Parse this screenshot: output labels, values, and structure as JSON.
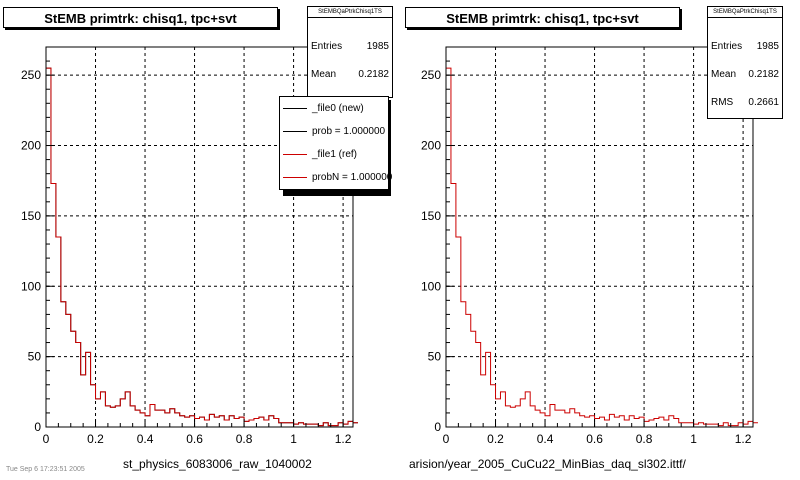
{
  "theme": {
    "frame_color": "#000000",
    "file0_color": "#000000",
    "file1_color": "#cc0000",
    "background": "#ffffff"
  },
  "chart_data": [
    {
      "type": "histogram",
      "title": "StEMB primtrk: chisq1, tpc+svt",
      "xlim": [
        0,
        1.24
      ],
      "ylim": [
        0,
        270
      ],
      "xticks": [
        0,
        0.2,
        0.4,
        0.6,
        0.8,
        1,
        1.2
      ],
      "yticks": [
        0,
        50,
        100,
        150,
        200,
        250
      ],
      "bin_width": 0.02,
      "grid": true,
      "xlabel": "st_physics_6083006_raw_1040002",
      "series": [
        {
          "name": "_file0 (new)",
          "color": "#000000",
          "values": [
            255,
            173,
            135,
            89,
            80,
            68,
            60,
            37,
            53,
            30,
            20,
            25,
            15,
            14,
            15,
            20,
            25,
            15,
            12,
            10,
            8,
            16,
            12,
            12,
            10,
            13,
            10,
            8,
            7,
            8,
            6,
            7,
            5,
            9,
            7,
            8,
            5,
            8,
            6,
            7,
            4,
            5,
            6,
            7,
            5,
            8,
            6,
            3,
            3,
            3,
            2,
            3,
            2,
            2,
            2,
            1,
            3,
            1,
            1,
            3,
            2,
            4,
            3
          ]
        },
        {
          "name": "_file1 (ref)",
          "color": "#cc0000",
          "values": [
            255,
            173,
            135,
            89,
            80,
            68,
            60,
            37,
            53,
            30,
            20,
            25,
            15,
            14,
            15,
            20,
            25,
            15,
            12,
            10,
            8,
            16,
            12,
            12,
            10,
            13,
            10,
            8,
            7,
            8,
            6,
            7,
            5,
            9,
            7,
            8,
            5,
            8,
            6,
            7,
            4,
            5,
            6,
            7,
            5,
            8,
            6,
            3,
            3,
            3,
            2,
            3,
            2,
            2,
            2,
            1,
            3,
            1,
            1,
            3,
            2,
            4,
            3
          ]
        }
      ],
      "stats": {
        "name": "StEMBQaPtrkChisq1TS",
        "entries": "1985",
        "mean": "0.2182"
      },
      "legend": [
        "_file0 (new)",
        "prob = 1.000000",
        "_file1 (ref)",
        "probN = 1.000000"
      ],
      "legend_placement": "top-right"
    },
    {
      "type": "histogram",
      "title": "StEMB primtrk: chisq1, tpc+svt",
      "xlim": [
        0,
        1.24
      ],
      "ylim": [
        0,
        270
      ],
      "xticks": [
        0,
        0.2,
        0.4,
        0.6,
        0.8,
        1,
        1.2
      ],
      "yticks": [
        0,
        50,
        100,
        150,
        200,
        250
      ],
      "bin_width": 0.02,
      "grid": true,
      "xlabel": "arision/year_2005_CuCu22_MinBias_daq_sl302.ittf/",
      "series": [
        {
          "name": "_file1 (ref)",
          "color": "#cc0000",
          "values": [
            255,
            173,
            135,
            89,
            80,
            68,
            60,
            37,
            53,
            30,
            20,
            25,
            15,
            14,
            15,
            20,
            25,
            15,
            12,
            10,
            8,
            16,
            12,
            12,
            10,
            13,
            10,
            8,
            7,
            8,
            6,
            7,
            5,
            9,
            7,
            8,
            5,
            8,
            6,
            7,
            4,
            5,
            6,
            7,
            5,
            8,
            6,
            3,
            3,
            3,
            2,
            3,
            2,
            2,
            2,
            1,
            3,
            1,
            1,
            3,
            2,
            4,
            3
          ]
        }
      ],
      "stats": {
        "name": "StEMBQaPtrkChisq1TS",
        "entries": "1985",
        "mean": "0.2182",
        "rms": "0.2661"
      }
    }
  ],
  "footer": {
    "corner_text": "Tue Sep 6 17:23:51 2005"
  }
}
